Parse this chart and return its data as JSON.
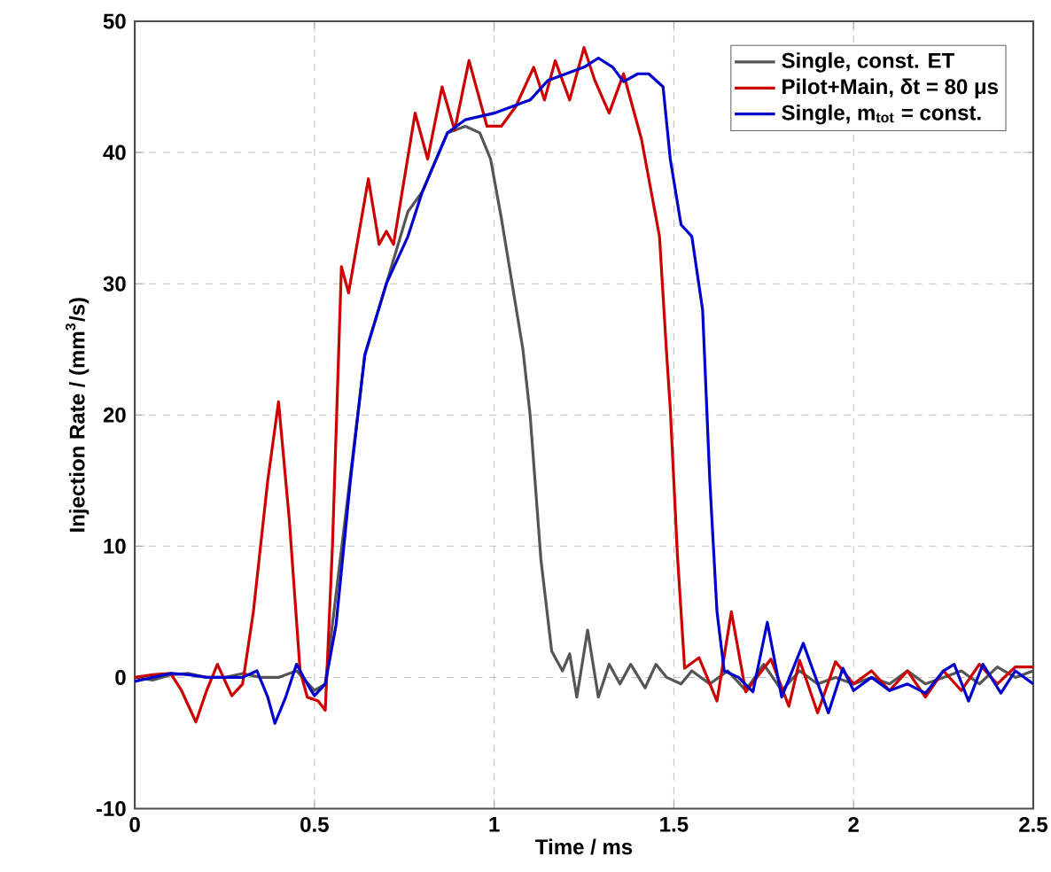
{
  "chart_data": {
    "type": "line",
    "xlabel": "Time / ms",
    "ylabel": "Injection Rate / (mm$^{3}$/s)",
    "xlim": [
      0,
      2.5
    ],
    "ylim": [
      -10,
      50
    ],
    "xticks": [
      0,
      0.5,
      1,
      1.5,
      2,
      2.5
    ],
    "yticks": [
      -10,
      0,
      10,
      20,
      30,
      40,
      50
    ],
    "grid": true,
    "legend": "top right",
    "series": [
      {
        "name": "Single, const. ET",
        "color": "#555555",
        "x": [
          0,
          0.05,
          0.1,
          0.15,
          0.2,
          0.25,
          0.3,
          0.35,
          0.4,
          0.45,
          0.5,
          0.53,
          0.56,
          0.6,
          0.64,
          0.7,
          0.76,
          0.8,
          0.87,
          0.92,
          0.96,
          0.99,
          1.02,
          1.05,
          1.08,
          1.1,
          1.13,
          1.16,
          1.19,
          1.21,
          1.23,
          1.26,
          1.29,
          1.32,
          1.35,
          1.38,
          1.42,
          1.45,
          1.48,
          1.52,
          1.55,
          1.6,
          1.65,
          1.7,
          1.75,
          1.8,
          1.85,
          1.9,
          1.95,
          2.0,
          2.05,
          2.1,
          2.15,
          2.2,
          2.25,
          2.3,
          2.35,
          2.4,
          2.45,
          2.5
        ],
        "values": [
          0,
          -0.2,
          0.2,
          0.3,
          0,
          0,
          0.3,
          0,
          0,
          0.5,
          -1,
          -0.5,
          null,
          null,
          24.5,
          30,
          35.5,
          37,
          41.5,
          42,
          41.5,
          39.5,
          35,
          30,
          25,
          20,
          9,
          2,
          0.5,
          1.8,
          -1.5,
          3.6,
          -1.5,
          1,
          -0.5,
          1,
          -0.8,
          1,
          0,
          -0.5,
          0.5,
          -0.5,
          0.5,
          -1,
          1,
          -1,
          0.5,
          -0.5,
          0,
          -0.5,
          0,
          -0.5,
          0.5,
          -0.5,
          0,
          0.5,
          -0.5,
          0.8,
          0,
          0.5
        ]
      },
      {
        "name": "Pilot+Main, δt = 80 μs",
        "color": "#cc0000",
        "x": [
          0,
          0.05,
          0.1,
          0.13,
          0.17,
          0.2,
          0.23,
          0.27,
          0.3,
          0.33,
          0.37,
          0.4,
          0.43,
          0.46,
          0.48,
          0.51,
          0.53,
          0.55,
          0.575,
          0.595,
          0.65,
          0.68,
          0.7,
          0.72,
          0.78,
          0.815,
          0.855,
          0.89,
          0.93,
          0.98,
          1.02,
          1.06,
          1.11,
          1.14,
          1.17,
          1.21,
          1.25,
          1.28,
          1.32,
          1.36,
          1.41,
          1.46,
          1.48,
          1.49,
          1.51,
          1.53,
          1.57,
          1.62,
          1.66,
          1.7,
          1.77,
          1.82,
          1.85,
          1.9,
          1.95,
          2.0,
          2.05,
          2.1,
          2.15,
          2.2,
          2.25,
          2.3,
          2.35,
          2.4,
          2.45,
          2.5
        ],
        "values": [
          0,
          0.2,
          0.3,
          -1,
          -3.4,
          -1,
          1,
          -1.4,
          -0.5,
          5,
          15,
          21,
          12,
          0.5,
          -1.5,
          -1.8,
          -2.5,
          10,
          31.3,
          29.3,
          38,
          33,
          34,
          33,
          43,
          39.5,
          45,
          41.7,
          47,
          42,
          42,
          43.5,
          46.5,
          44,
          47,
          44,
          48,
          45.5,
          43,
          46,
          41,
          33.6,
          24.6,
          20.5,
          9.3,
          0.7,
          1.5,
          -1.8,
          5,
          -1.1,
          1.4,
          -2.2,
          1.3,
          -2.7,
          1.2,
          -0.5,
          0.5,
          -1,
          0.5,
          -1.5,
          0.5,
          -1,
          1,
          -0.5,
          0.8,
          0.8
        ]
      },
      {
        "name": "Single, m$_{tot}$ = const.",
        "color": "#0000cc",
        "x": [
          0,
          0.05,
          0.1,
          0.15,
          0.2,
          0.25,
          0.3,
          0.34,
          0.37,
          0.39,
          0.42,
          0.45,
          0.48,
          0.5,
          0.53,
          0.56,
          0.6,
          0.64,
          0.7,
          0.76,
          0.8,
          0.87,
          0.92,
          1.0,
          1.05,
          1.1,
          1.15,
          1.2,
          1.25,
          1.29,
          1.33,
          1.36,
          1.4,
          1.43,
          1.47,
          1.49,
          1.52,
          1.55,
          1.58,
          1.6,
          1.62,
          1.64,
          1.68,
          1.72,
          1.76,
          1.8,
          1.86,
          1.93,
          1.97,
          2.0,
          2.05,
          2.1,
          2.15,
          2.2,
          2.25,
          2.28,
          2.32,
          2.36,
          2.41,
          2.45,
          2.5
        ],
        "values": [
          -0.3,
          0,
          0.3,
          0.2,
          0,
          0,
          0,
          0.5,
          -1.5,
          -3.5,
          -1.5,
          1,
          -0.5,
          -1.4,
          -0.5,
          4,
          15,
          24.6,
          30,
          33.6,
          37,
          41.5,
          42.5,
          43,
          43.5,
          44,
          45.5,
          46,
          46.5,
          47.2,
          46.5,
          45.4,
          46,
          46,
          45,
          39.5,
          34.5,
          33.6,
          28,
          15,
          5,
          0.5,
          0,
          -1.1,
          4.2,
          -1.5,
          2.6,
          -2.7,
          0.7,
          -1,
          0,
          -1,
          -0.5,
          -1.2,
          0.5,
          1,
          -1.8,
          1,
          -1.2,
          0.5,
          -0.5
        ]
      }
    ]
  }
}
